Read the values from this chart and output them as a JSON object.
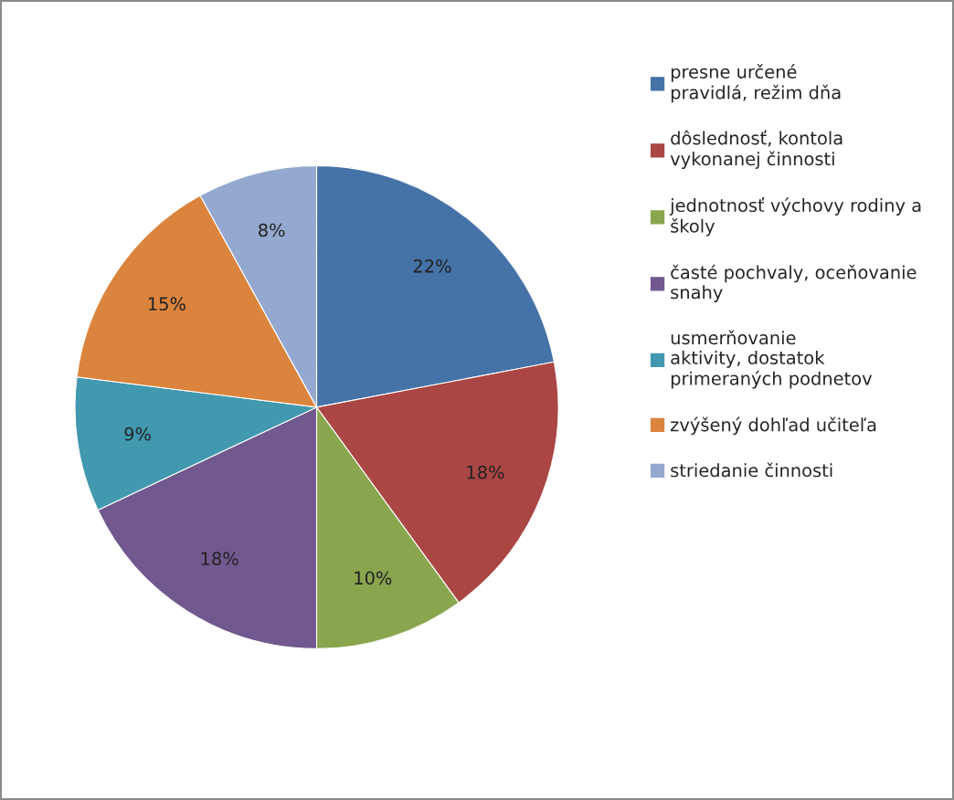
{
  "chart_data": {
    "type": "pie",
    "categories": [
      "presne určené\npravidlá, režim dňa",
      "dôslednosť, kontola\nvykonanej činnosti",
      "jednotnosť výchovy rodiny a\nškoly",
      "časté pochvaly, oceňovanie\nsnahy",
      "usmerňovanie\naktivity, dostatok\nprimeraných podnetov",
      "zvýšený dohľad učiteľa",
      "striedanie činnosti"
    ],
    "values": [
      22,
      18,
      10,
      18,
      9,
      15,
      8
    ],
    "value_labels": [
      "22%",
      "18%",
      "10%",
      "18%",
      "9%",
      "15%",
      "8%"
    ],
    "colors": [
      "#4572a7",
      "#aa4643",
      "#89a54e",
      "#71588f",
      "#4198af",
      "#db843d",
      "#93a9cf"
    ],
    "legend": "right"
  }
}
